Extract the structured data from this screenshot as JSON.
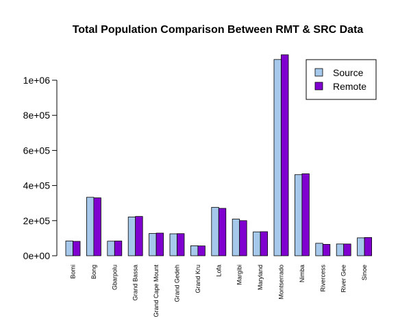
{
  "chart_data": {
    "type": "bar",
    "title": "Total Population Comparison Between RMT & SRC Data",
    "xlabel": "",
    "ylabel": "",
    "categories": [
      "Bomi",
      "Bong",
      "Gbarpolu",
      "Grand Bassa",
      "Grand Cape Mount",
      "Grand Gedeh",
      "Grand Kru",
      "Lofa",
      "Margibi",
      "Maryland",
      "Montserrado",
      "Nimba",
      "Rivercess",
      "River Gee",
      "Sinoe"
    ],
    "series": [
      {
        "name": "Source",
        "color": "#a6c8ea",
        "values": [
          84000,
          333000,
          83000,
          221000,
          127000,
          125000,
          57000,
          276000,
          209000,
          136000,
          1118000,
          462000,
          71000,
          67000,
          102000
        ]
      },
      {
        "name": "Remote",
        "color": "#8000d0",
        "values": [
          82000,
          330000,
          84000,
          224000,
          129000,
          126000,
          56000,
          270000,
          200000,
          137000,
          1145000,
          467000,
          65000,
          67000,
          104000
        ]
      }
    ],
    "ylim": [
      0,
      1150000
    ],
    "yticks": [
      0,
      200000,
      400000,
      600000,
      800000,
      1000000
    ],
    "ytick_labels": [
      "0e+00",
      "2e+05",
      "4e+05",
      "6e+05",
      "8e+05",
      "1e+06"
    ],
    "legend": "top-right",
    "grid": false
  }
}
